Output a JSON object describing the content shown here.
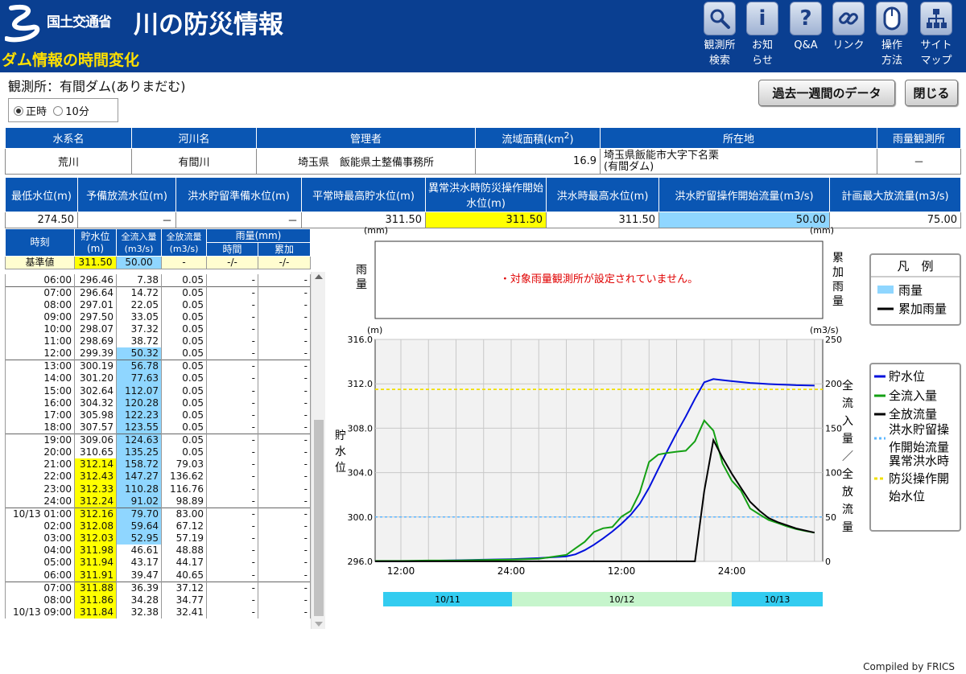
{
  "header": {
    "ministry": "国土交通省",
    "site_title": "川の防災情報",
    "page_heading": "ダム情報の時間変化",
    "nav": [
      {
        "label": "観測所\n検索",
        "icon": "search-icon"
      },
      {
        "label": "お知\nらせ",
        "icon": "info-icon"
      },
      {
        "label": "Q&A",
        "icon": "help-icon"
      },
      {
        "label": "リンク",
        "icon": "link-icon"
      },
      {
        "label": "操作\n方法",
        "icon": "mouse-icon"
      },
      {
        "label": "サイト\nマップ",
        "icon": "sitemap-icon"
      }
    ]
  },
  "station": {
    "label": "観測所：",
    "name": "有間ダム(ありまだむ)"
  },
  "mode": {
    "option1": "正時",
    "option2": "10分",
    "selected": "正時"
  },
  "buttons": {
    "past_week": "過去一週間のデータ",
    "close": "閉じる"
  },
  "info1": {
    "headers": [
      "水系名",
      "河川名",
      "管理者",
      "流域面積(km",
      "所在地",
      "雨量観測所"
    ],
    "area_sup": "2",
    "area_close": ")",
    "values": {
      "system": "荒川",
      "river": "有間川",
      "manager": "埼玉県　飯能県土整備事務所",
      "area": "16.9",
      "location1": "埼玉県飯能市大字下名栗",
      "location2": "(有間ダム)",
      "rain_station": "－"
    }
  },
  "info2": {
    "headers": [
      "最低水位(m)",
      "予備放流水位(m)",
      "洪水貯留準備水位(m)",
      "平常時最高貯水位(m)",
      "異常洪水時防災操作開始水位(m)",
      "洪水時最高水位(m)",
      "洪水貯留操作開始流量(m",
      "計画最大放流量(m"
    ],
    "flow_unit_tail": "3/s)",
    "values": [
      "274.50",
      "－",
      "－",
      "311.50",
      "311.50",
      "311.50",
      "50.00",
      "75.00"
    ]
  },
  "timetable": {
    "headers": {
      "time": "時刻",
      "level": "貯水位",
      "level_unit": "(m)",
      "inflow": "全流入量",
      "inflow_unit": "(m3/s)",
      "outflow": "全放流量",
      "outflow_unit": "(m3/s)",
      "rain": "雨量(mm)",
      "rain_time": "時間",
      "rain_cum": "累加"
    },
    "reference": {
      "label": "基準値",
      "level": "311.50",
      "inflow": "50.00",
      "outflow": "-",
      "rain_time": "-/-",
      "rain_cum": "-/-"
    },
    "rows": [
      {
        "t": "06:00",
        "lv": "296.46",
        "in": "7.38",
        "out": "0.05",
        "hl": "",
        "hi": false
      },
      {
        "t": "07:00",
        "lv": "296.64",
        "in": "14.72",
        "out": "0.05",
        "hl": "",
        "hi": false
      },
      {
        "t": "08:00",
        "lv": "297.01",
        "in": "22.05",
        "out": "0.05",
        "hl": "",
        "hi": false
      },
      {
        "t": "09:00",
        "lv": "297.50",
        "in": "33.05",
        "out": "0.05",
        "hl": "",
        "hi": false
      },
      {
        "t": "10:00",
        "lv": "298.07",
        "in": "37.32",
        "out": "0.05",
        "hl": "",
        "hi": false
      },
      {
        "t": "11:00",
        "lv": "298.69",
        "in": "38.72",
        "out": "0.05",
        "hl": "",
        "hi": false
      },
      {
        "t": "12:00",
        "lv": "299.39",
        "in": "50.32",
        "out": "0.05",
        "hl": "",
        "hi": true
      },
      {
        "t": "13:00",
        "lv": "300.19",
        "in": "56.78",
        "out": "0.05",
        "hl": "",
        "hi": true
      },
      {
        "t": "14:00",
        "lv": "301.20",
        "in": "77.63",
        "out": "0.05",
        "hl": "",
        "hi": true
      },
      {
        "t": "15:00",
        "lv": "302.64",
        "in": "112.07",
        "out": "0.05",
        "hl": "",
        "hi": true
      },
      {
        "t": "16:00",
        "lv": "304.32",
        "in": "120.28",
        "out": "0.05",
        "hl": "",
        "hi": true
      },
      {
        "t": "17:00",
        "lv": "305.98",
        "in": "122.23",
        "out": "0.05",
        "hl": "",
        "hi": true
      },
      {
        "t": "18:00",
        "lv": "307.57",
        "in": "123.55",
        "out": "0.05",
        "hl": "",
        "hi": true
      },
      {
        "t": "19:00",
        "lv": "309.06",
        "in": "124.63",
        "out": "0.05",
        "hl": "",
        "hi": true
      },
      {
        "t": "20:00",
        "lv": "310.65",
        "in": "135.25",
        "out": "0.05",
        "hl": "",
        "hi": true
      },
      {
        "t": "21:00",
        "lv": "312.14",
        "in": "158.72",
        "out": "79.03",
        "hl": "y",
        "hi": true
      },
      {
        "t": "22:00",
        "lv": "312.43",
        "in": "147.27",
        "out": "136.62",
        "hl": "y",
        "hi": true
      },
      {
        "t": "23:00",
        "lv": "312.33",
        "in": "110.28",
        "out": "116.76",
        "hl": "y",
        "hi": true
      },
      {
        "t": "24:00",
        "lv": "312.24",
        "in": "91.02",
        "out": "98.89",
        "hl": "y",
        "hi": true
      },
      {
        "t": "10/13 01:00",
        "lv": "312.16",
        "in": "79.70",
        "out": "83.00",
        "hl": "y",
        "hi": true
      },
      {
        "t": "02:00",
        "lv": "312.08",
        "in": "59.64",
        "out": "67.12",
        "hl": "y",
        "hi": true
      },
      {
        "t": "03:00",
        "lv": "312.03",
        "in": "52.95",
        "out": "57.19",
        "hl": "y",
        "hi": true
      },
      {
        "t": "04:00",
        "lv": "311.98",
        "in": "46.61",
        "out": "48.88",
        "hl": "y",
        "hi": false
      },
      {
        "t": "05:00",
        "lv": "311.94",
        "in": "43.17",
        "out": "44.17",
        "hl": "y",
        "hi": false
      },
      {
        "t": "06:00",
        "lv": "311.91",
        "in": "39.47",
        "out": "40.65",
        "hl": "y",
        "hi": false
      },
      {
        "t": "07:00",
        "lv": "311.88",
        "in": "36.39",
        "out": "37.12",
        "hl": "y",
        "hi": false
      },
      {
        "t": "08:00",
        "lv": "311.86",
        "in": "34.28",
        "out": "34.77",
        "hl": "y",
        "hi": false
      },
      {
        "t": "10/13 09:00",
        "lv": "311.84",
        "in": "32.38",
        "out": "32.41",
        "hl": "y",
        "hi": false
      }
    ],
    "rain_placeholder": "-"
  },
  "chart_data": {
    "type": "line",
    "rain_panel": {
      "unit_left": "(mm)",
      "unit_right": "(mm)",
      "ylabel": "雨量",
      "y2label": "累加雨量",
      "message": "・対象雨量観測所が設定されていません。"
    },
    "legend_rain": {
      "title": "凡　例",
      "items": [
        "雨量",
        "累加雨量"
      ]
    },
    "left_axis": {
      "unit": "(m)",
      "label": "貯水位",
      "ylim": [
        296.0,
        316.0
      ],
      "ticks": [
        "316.0",
        "312.0",
        "308.0",
        "304.0",
        "300.0",
        "296.0"
      ]
    },
    "right_axis": {
      "unit": "(m3/s)",
      "label": "全流入量／全放流量",
      "ylim": [
        0,
        250
      ],
      "ticks": [
        "250",
        "200",
        "150",
        "100",
        "50",
        "0"
      ]
    },
    "x_ticks": [
      "12:00",
      "24:00",
      "12:00",
      "24:00"
    ],
    "date_bands": [
      "10/11",
      "10/12",
      "10/13"
    ],
    "reference_lines": {
      "flood_storage_flow": 50,
      "abnormal_flood_level": 311.5
    },
    "series": [
      {
        "name": "貯水位",
        "axis": "left",
        "color": "#0010dd",
        "x": [
          "10/11 09:00",
          "10/11 12:00",
          "10/11 15:00",
          "10/11 18:00",
          "10/11 21:00",
          "10/12 00:00",
          "10/12 03:00",
          "10/12 06:00",
          "10/12 07:00",
          "10/12 08:00",
          "10/12 09:00",
          "10/12 10:00",
          "10/12 11:00",
          "10/12 12:00",
          "10/12 13:00",
          "10/12 14:00",
          "10/12 15:00",
          "10/12 16:00",
          "10/12 17:00",
          "10/12 18:00",
          "10/12 19:00",
          "10/12 20:00",
          "10/12 21:00",
          "10/12 22:00",
          "10/12 23:00",
          "10/13 00:00",
          "10/13 01:00",
          "10/13 02:00",
          "10/13 03:00",
          "10/13 04:00",
          "10/13 05:00",
          "10/13 06:00",
          "10/13 07:00",
          "10/13 08:00",
          "10/13 09:00"
        ],
        "y": [
          296.0,
          296.0,
          296.05,
          296.1,
          296.15,
          296.2,
          296.3,
          296.46,
          296.64,
          297.01,
          297.5,
          298.07,
          298.69,
          299.39,
          300.19,
          301.2,
          302.64,
          304.32,
          305.98,
          307.57,
          309.06,
          310.65,
          312.14,
          312.43,
          312.33,
          312.24,
          312.16,
          312.08,
          312.03,
          311.98,
          311.94,
          311.91,
          311.88,
          311.86,
          311.84
        ]
      },
      {
        "name": "全流入量",
        "axis": "right",
        "color": "#14a014",
        "x": [
          "10/11 09:00",
          "10/11 12:00",
          "10/11 15:00",
          "10/11 18:00",
          "10/11 21:00",
          "10/12 00:00",
          "10/12 03:00",
          "10/12 06:00",
          "10/12 07:00",
          "10/12 08:00",
          "10/12 09:00",
          "10/12 10:00",
          "10/12 11:00",
          "10/12 12:00",
          "10/12 13:00",
          "10/12 14:00",
          "10/12 15:00",
          "10/12 16:00",
          "10/12 17:00",
          "10/12 18:00",
          "10/12 19:00",
          "10/12 20:00",
          "10/12 21:00",
          "10/12 22:00",
          "10/12 23:00",
          "10/13 00:00",
          "10/13 01:00",
          "10/13 02:00",
          "10/13 03:00",
          "10/13 04:00",
          "10/13 05:00",
          "10/13 06:00",
          "10/13 07:00",
          "10/13 08:00",
          "10/13 09:00"
        ],
        "y": [
          0.5,
          0.5,
          1,
          1,
          1.5,
          2,
          3,
          7.38,
          14.72,
          22.05,
          33.05,
          37.32,
          38.72,
          50.32,
          56.78,
          77.63,
          112.07,
          120.28,
          122.23,
          123.55,
          124.63,
          135.25,
          158.72,
          147.27,
          110.28,
          91.02,
          79.7,
          59.64,
          52.95,
          46.61,
          43.17,
          39.47,
          36.39,
          34.28,
          32.38
        ]
      },
      {
        "name": "全放流量",
        "axis": "right",
        "color": "#000000",
        "x": [
          "10/11 09:00",
          "10/12 20:00",
          "10/12 21:00",
          "10/12 22:00",
          "10/12 23:00",
          "10/13 00:00",
          "10/13 01:00",
          "10/13 02:00",
          "10/13 03:00",
          "10/13 04:00",
          "10/13 05:00",
          "10/13 06:00",
          "10/13 07:00",
          "10/13 08:00",
          "10/13 09:00"
        ],
        "y": [
          0.05,
          0.05,
          79.03,
          136.62,
          116.76,
          98.89,
          83.0,
          67.12,
          57.19,
          48.88,
          44.17,
          40.65,
          37.12,
          34.77,
          32.41
        ]
      }
    ],
    "legend_main": [
      "貯水位",
      "全流入量",
      "全放流量",
      "洪水貯留操作開始流量",
      "異常洪水時防災操作開始水位"
    ]
  },
  "footer": "Compiled by FRICS",
  "colors": {
    "header_bg": "#0a3f91",
    "table_header": "#0a56b3",
    "highlight_yellow": "#ffff00",
    "highlight_cyan": "#8fd6ff",
    "heading_yellow": "#ffe000"
  }
}
